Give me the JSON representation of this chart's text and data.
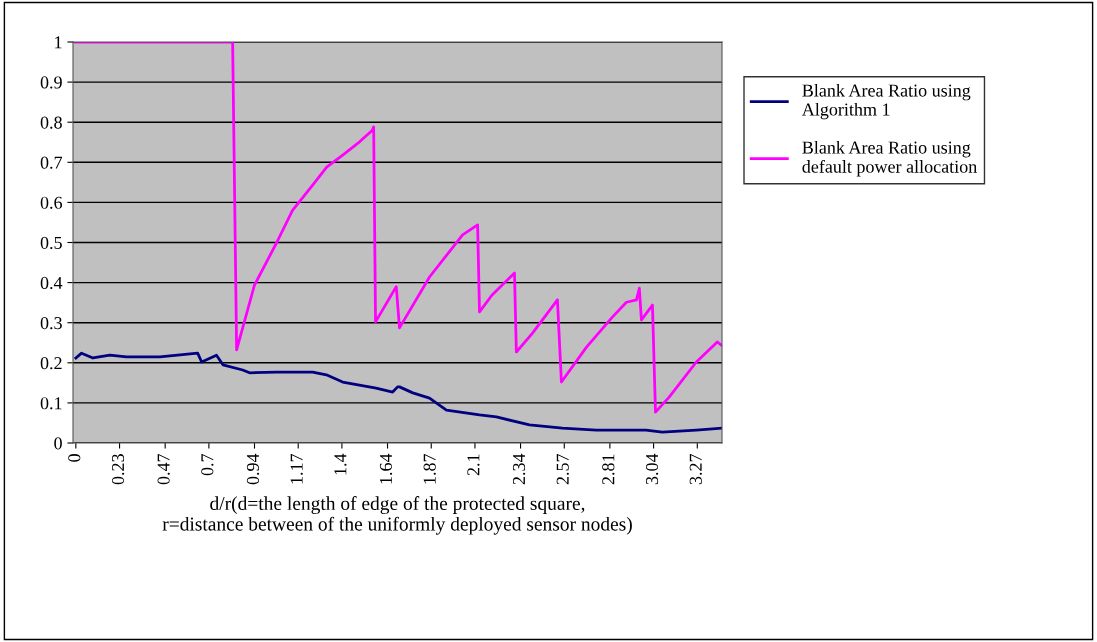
{
  "chart_data": {
    "type": "line",
    "xlabel": "d/r(d=the length of edge of the protected square,\nr=distance between of the uniformly deployed sensor nodes)",
    "series": [
      {
        "name": "Blank Area Ratio using\nAlgorithm 1",
        "color": "#000080",
        "x": [
          0,
          0.03,
          0.09,
          0.179,
          0.266,
          0.442,
          0.641,
          0.662,
          0.74,
          0.774,
          0.878,
          0.914,
          1.057,
          1.246,
          1.318,
          1.404,
          1.58,
          1.667,
          1.693,
          1.703,
          1.773,
          1.861,
          1.95,
          2.124,
          2.213,
          2.387,
          2.56,
          2.739,
          3.0,
          3.086,
          3.265,
          3.396
        ],
        "values": [
          0.212,
          0.224,
          0.212,
          0.219,
          0.215,
          0.215,
          0.224,
          0.202,
          0.219,
          0.195,
          0.182,
          0.175,
          0.177,
          0.177,
          0.17,
          0.152,
          0.137,
          0.127,
          0.14,
          0.14,
          0.125,
          0.112,
          0.082,
          0.07,
          0.065,
          0.045,
          0.037,
          0.032,
          0.032,
          0.027,
          0.032,
          0.037
        ]
      },
      {
        "name": "Blank Area Ratio using\ndefault power allocation",
        "color": "#ff00ff",
        "x": [
          0,
          0.825,
          0.846,
          0.94,
          1.057,
          1.14,
          1.246,
          1.32,
          1.404,
          1.493,
          1.56,
          1.567,
          1.577,
          1.686,
          1.703,
          1.861,
          2.035,
          2.114,
          2.124,
          2.19,
          2.308,
          2.318,
          2.403,
          2.534,
          2.555,
          2.687,
          2.823,
          2.897,
          2.95,
          2.965,
          2.976,
          3.034,
          3.05,
          3.123,
          3.265,
          3.375,
          3.396
        ],
        "values": [
          1,
          1,
          0.232,
          0.394,
          0.5,
          0.58,
          0.643,
          0.688,
          0.718,
          0.751,
          0.78,
          0.788,
          0.302,
          0.39,
          0.287,
          0.414,
          0.519,
          0.544,
          0.327,
          0.369,
          0.424,
          0.227,
          0.274,
          0.357,
          0.152,
          0.239,
          0.314,
          0.351,
          0.357,
          0.386,
          0.307,
          0.344,
          0.077,
          0.115,
          0.202,
          0.252,
          0.244
        ]
      }
    ],
    "xlim": [
      -0.015,
      3.4
    ],
    "xticks": [
      0,
      0.23,
      0.47,
      0.7,
      0.94,
      1.17,
      1.4,
      1.64,
      1.87,
      2.1,
      2.34,
      2.57,
      2.81,
      3.04,
      3.27
    ],
    "ylim": [
      0,
      1
    ],
    "yticks": [
      0,
      0.1,
      0.2,
      0.3,
      0.4,
      0.5,
      0.6,
      0.7,
      0.8,
      0.9,
      1
    ],
    "grid": "y",
    "legend": "right",
    "marker": "none",
    "line_style": "solid"
  }
}
